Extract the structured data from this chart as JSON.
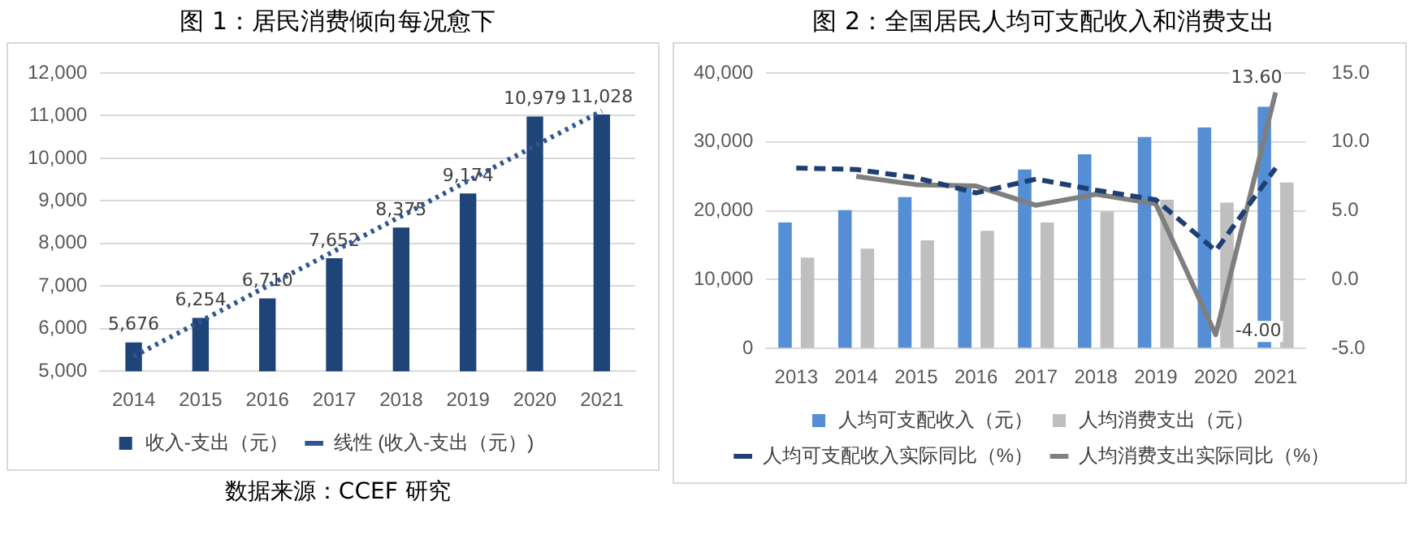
{
  "chart_data": [
    {
      "type": "bar",
      "title": "图 1：居民消费倾向每况愈下",
      "categories": [
        "2014",
        "2015",
        "2016",
        "2017",
        "2018",
        "2019",
        "2020",
        "2021"
      ],
      "series": [
        {
          "name": "收入-支出（元）",
          "color": "#1f4478",
          "values": [
            5676,
            6254,
            6710,
            7652,
            8375,
            9174,
            10979,
            11028
          ],
          "value_labels": [
            "5,676",
            "6,254",
            "6,710",
            "7,652",
            "8,375",
            "9,174",
            "10,979",
            "11,028"
          ]
        },
        {
          "name": "线性 (收入-支出（元）)",
          "type": "line",
          "color": "#2f5597",
          "line_style": "dotted",
          "values": [
            5350,
            6170,
            7000,
            7820,
            8640,
            9470,
            10290,
            11110
          ]
        }
      ],
      "ylim": [
        5000,
        12000
      ],
      "yticks": [
        {
          "value": 5000,
          "label": "5,000"
        },
        {
          "value": 6000,
          "label": "6,000"
        },
        {
          "value": 7000,
          "label": "7,000"
        },
        {
          "value": 8000,
          "label": "8,000"
        },
        {
          "value": 9000,
          "label": "9,000"
        },
        {
          "value": 10000,
          "label": "10,000"
        },
        {
          "value": 11000,
          "label": "11,000"
        },
        {
          "value": 12000,
          "label": "12,000"
        }
      ],
      "grid": "y",
      "legend": "bottom",
      "marker": "none",
      "annotations": [
        "数据来源：CCEF 研究"
      ]
    },
    {
      "type": "bar",
      "title": "图 2：全国居民人均可支配收入和消费支出",
      "categories": [
        "2013",
        "2014",
        "2015",
        "2016",
        "2017",
        "2018",
        "2019",
        "2020",
        "2021"
      ],
      "series": [
        {
          "name": "人均可支配收入（元）",
          "color": "#558ed5",
          "values": [
            18300,
            20100,
            22000,
            23800,
            26000,
            28200,
            30700,
            32100,
            35100
          ]
        },
        {
          "name": "人均消费支出（元）",
          "color": "#bfbfbf",
          "values": [
            13200,
            14500,
            15700,
            17100,
            18300,
            19900,
            21600,
            21200,
            24100
          ]
        },
        {
          "name": "人均可支配收入实际同比（%）",
          "type": "line",
          "axis": "y2",
          "color": "#1f3f73",
          "line_style": "dashed",
          "values": [
            8.1,
            8.0,
            7.4,
            6.3,
            7.3,
            6.5,
            5.8,
            2.1,
            8.1
          ]
        },
        {
          "name": "人均消费支出实际同比（%）",
          "type": "line",
          "axis": "y2",
          "color": "#7f7f7f",
          "line_style": "solid",
          "values": [
            null,
            7.5,
            6.9,
            6.8,
            5.4,
            6.2,
            5.5,
            -4.0,
            13.6
          ],
          "value_labels": [
            null,
            null,
            null,
            null,
            null,
            null,
            null,
            "-4.00",
            "13.60"
          ]
        }
      ],
      "ylim": [
        0,
        40000
      ],
      "yticks": [
        0,
        {
          "value": 10000,
          "label": "10,000"
        },
        {
          "value": 20000,
          "label": "20,000"
        },
        {
          "value": 30000,
          "label": "30,000"
        },
        {
          "value": 40000,
          "label": "40,000"
        }
      ],
      "y2lim": [
        -5,
        15
      ],
      "y2ticks": [
        {
          "value": -5,
          "label": "-5.0"
        },
        {
          "value": 0,
          "label": "0.0"
        },
        {
          "value": 5,
          "label": "5.0"
        },
        {
          "value": 10,
          "label": "10.0"
        },
        {
          "value": 15,
          "label": "15.0"
        }
      ],
      "grid": "y",
      "legend": "bottom",
      "marker": "none"
    }
  ]
}
